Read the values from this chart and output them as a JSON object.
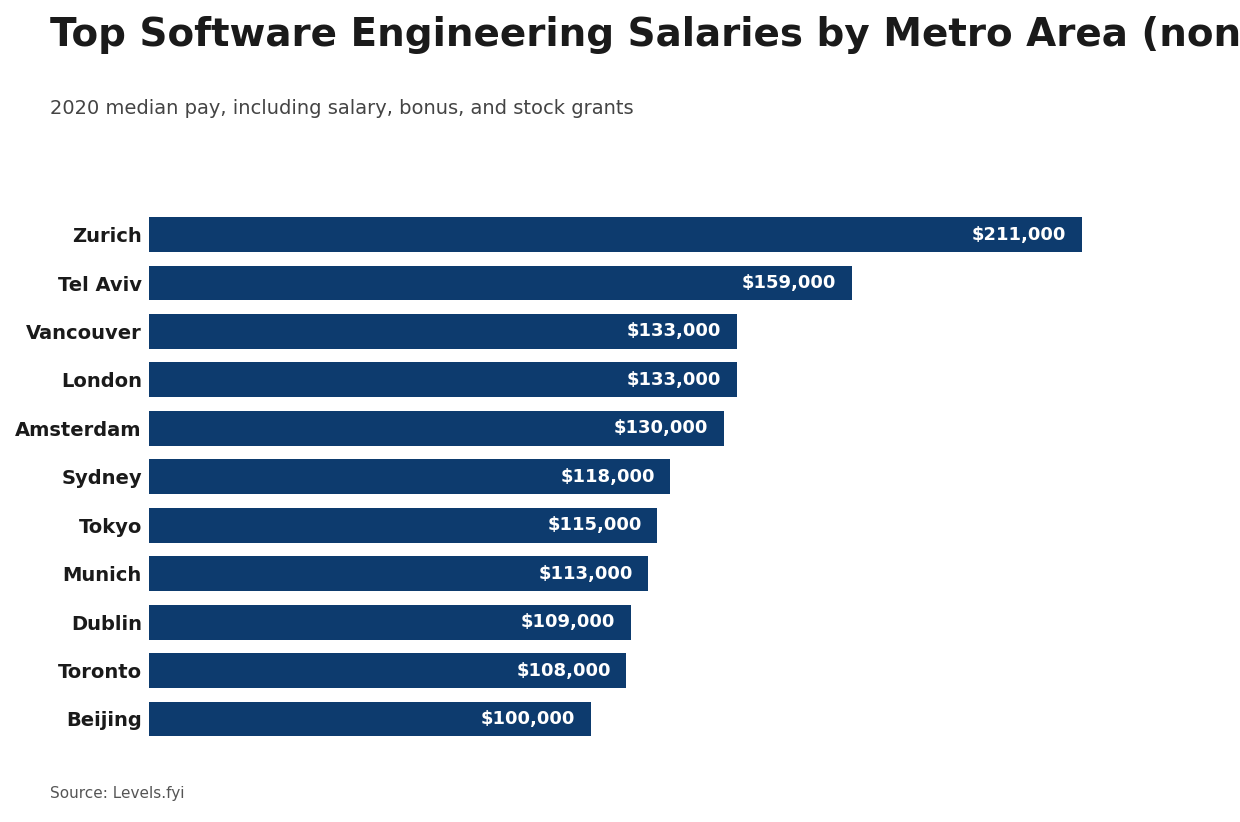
{
  "title": "Top Software Engineering Salaries by Metro Area (non-U.S.)",
  "subtitle": "2020 median pay, including salary, bonus, and stock grants",
  "source": "Source: Levels.fyi",
  "categories": [
    "Beijing",
    "Toronto",
    "Dublin",
    "Munich",
    "Tokyo",
    "Sydney",
    "Amsterdam",
    "London",
    "Vancouver",
    "Tel Aviv",
    "Zurich"
  ],
  "values": [
    100000,
    108000,
    109000,
    113000,
    115000,
    118000,
    130000,
    133000,
    133000,
    159000,
    211000
  ],
  "bar_color": "#0d3b6e",
  "label_color": "#ffffff",
  "background_color": "#ffffff",
  "title_color": "#1a1a1a",
  "subtitle_color": "#444444",
  "source_color": "#555555",
  "title_fontsize": 28,
  "subtitle_fontsize": 14,
  "label_fontsize": 13,
  "ytick_fontsize": 14,
  "source_fontsize": 11,
  "xlim": [
    0,
    230000
  ],
  "bar_height": 0.72
}
